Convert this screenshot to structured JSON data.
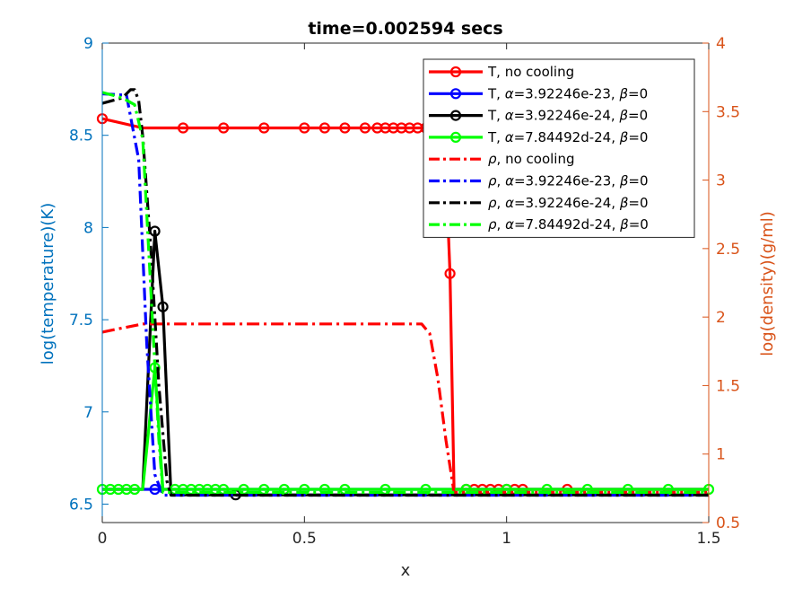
{
  "chart_data": {
    "type": "line",
    "title": "time=0.002594 secs",
    "xlabel": "x",
    "ylabel_left": "log(temperature)(K)",
    "ylabel_right": "log(density)(g/ml)",
    "xlim": [
      0,
      1.5
    ],
    "ylim_left": [
      6.4,
      9.0
    ],
    "ylim_right": [
      0.5,
      4.0
    ],
    "x_ticks": [
      "0",
      "0.5",
      "1",
      "1.5"
    ],
    "y_left_ticks": [
      "6.5",
      "7",
      "7.5",
      "8",
      "8.5",
      "9"
    ],
    "y_right_ticks": [
      "0.5",
      "1",
      "1.5",
      "2",
      "2.5",
      "3",
      "3.5",
      "4"
    ],
    "colors": {
      "left_axis": "#0072BD",
      "right_axis": "#D95319",
      "no_cooling": "#FF0000",
      "alpha_23": "#0000FF",
      "alpha_24": "#000000",
      "alpha_784": "#00FF00"
    },
    "legend_position": "top-right",
    "series": [
      {
        "name": "T, no cooling",
        "axis": "left",
        "style": "solid",
        "marker": "circle",
        "color_key": "no_cooling",
        "x": [
          0,
          0.1,
          0.2,
          0.3,
          0.4,
          0.5,
          0.55,
          0.6,
          0.65,
          0.7,
          0.72,
          0.74,
          0.76,
          0.78,
          0.8,
          0.82,
          0.84,
          0.85,
          0.86,
          0.87,
          0.88,
          0.9,
          0.92,
          0.94,
          0.96,
          1.0,
          1.05,
          1.1,
          1.15,
          1.2,
          1.5
        ],
        "y": [
          8.59,
          8.54,
          8.54,
          8.54,
          8.54,
          8.54,
          8.54,
          8.54,
          8.54,
          8.54,
          8.54,
          8.54,
          8.54,
          8.54,
          8.54,
          8.54,
          8.54,
          8.3,
          7.75,
          6.58,
          6.58,
          6.58,
          6.58,
          6.58,
          6.58,
          6.58,
          6.58,
          6.58,
          6.58,
          6.58,
          6.58
        ],
        "markers_x": [
          0,
          0.2,
          0.3,
          0.4,
          0.5,
          0.55,
          0.6,
          0.65,
          0.68,
          0.7,
          0.72,
          0.74,
          0.76,
          0.78,
          0.8,
          0.86,
          0.9,
          0.92,
          0.94,
          0.96,
          0.98,
          1.0,
          1.02,
          1.04,
          1.15
        ]
      },
      {
        "name": "T, α=3.92246e-23, β=0",
        "axis": "left",
        "style": "solid",
        "marker": "circle",
        "color_key": "alpha_23",
        "x": [
          0,
          0.02,
          0.04,
          0.06,
          0.08,
          0.1,
          0.12,
          0.14,
          0.16,
          0.2,
          0.4,
          0.6,
          0.8,
          1.0,
          1.5
        ],
        "y": [
          6.58,
          6.58,
          6.58,
          6.58,
          6.58,
          6.58,
          6.58,
          6.58,
          6.58,
          6.58,
          6.58,
          6.58,
          6.58,
          6.58,
          6.58
        ],
        "markers_x": [
          0.13
        ]
      },
      {
        "name": "T, α=3.92246e-24, β=0",
        "axis": "left",
        "style": "solid",
        "marker": "circle",
        "color_key": "alpha_24",
        "x": [
          0,
          0.1,
          0.13,
          0.15,
          0.17,
          0.2,
          0.3,
          0.4,
          0.5,
          0.6,
          0.7,
          0.8,
          0.9,
          1.0,
          1.5
        ],
        "y": [
          6.58,
          6.58,
          7.98,
          7.57,
          6.55,
          6.55,
          6.55,
          6.55,
          6.55,
          6.55,
          6.55,
          6.55,
          6.55,
          6.55,
          6.55
        ],
        "markers_x": [
          0.13,
          0.15,
          0.33
        ]
      },
      {
        "name": "T, α=7.84492d-24, β=0",
        "axis": "left",
        "style": "solid",
        "marker": "circle",
        "color_key": "alpha_784",
        "x": [
          0,
          0.1,
          0.13,
          0.15,
          0.2,
          0.3,
          0.5,
          0.8,
          1.0,
          1.5
        ],
        "y": [
          6.58,
          6.58,
          7.24,
          6.58,
          6.58,
          6.58,
          6.58,
          6.58,
          6.58,
          6.58
        ],
        "markers_x": [
          0,
          0.02,
          0.04,
          0.06,
          0.08,
          0.13,
          0.18,
          0.2,
          0.22,
          0.24,
          0.26,
          0.28,
          0.3,
          0.35,
          0.4,
          0.45,
          0.5,
          0.55,
          0.6,
          0.7,
          0.8,
          0.9,
          1.0,
          1.1,
          1.2,
          1.3,
          1.4,
          1.5
        ]
      },
      {
        "name": "ρ, no cooling",
        "axis": "right",
        "style": "dashdot",
        "marker": "none",
        "color_key": "no_cooling",
        "x": [
          0,
          0.05,
          0.1,
          0.2,
          0.4,
          0.6,
          0.79,
          0.81,
          0.83,
          0.85,
          0.87,
          0.9,
          1.0,
          1.5
        ],
        "y": [
          1.89,
          1.92,
          1.95,
          1.95,
          1.95,
          1.95,
          1.95,
          1.88,
          1.55,
          1.1,
          0.72,
          0.72,
          0.72,
          0.72
        ]
      },
      {
        "name": "ρ, α=3.92246e-23, β=0",
        "axis": "right",
        "style": "dashdot",
        "marker": "none",
        "color_key": "alpha_23",
        "x": [
          0,
          0.06,
          0.09,
          0.11,
          0.13,
          0.15,
          0.2,
          1.5
        ],
        "y": [
          3.63,
          3.62,
          3.15,
          1.8,
          0.85,
          0.7,
          0.7,
          0.7
        ]
      },
      {
        "name": "ρ, α=3.92246e-24, β=0",
        "axis": "right",
        "style": "dashdot",
        "marker": "none",
        "color_key": "alpha_24",
        "x": [
          0,
          0.05,
          0.07,
          0.08,
          0.09,
          0.1,
          0.12,
          0.14,
          0.16,
          0.17,
          0.2,
          1.5
        ],
        "y": [
          3.56,
          3.6,
          3.66,
          3.66,
          3.58,
          3.32,
          2.5,
          1.5,
          0.8,
          0.7,
          0.7,
          0.7
        ]
      },
      {
        "name": "ρ, α=7.84492d-24, β=0",
        "axis": "right",
        "style": "dashdot",
        "marker": "none",
        "color_key": "alpha_784",
        "x": [
          0,
          0.05,
          0.08,
          0.1,
          0.12,
          0.14,
          0.15,
          0.2,
          1.5
        ],
        "y": [
          3.64,
          3.6,
          3.55,
          3.3,
          2.2,
          1.1,
          0.72,
          0.72,
          0.72
        ]
      }
    ]
  }
}
